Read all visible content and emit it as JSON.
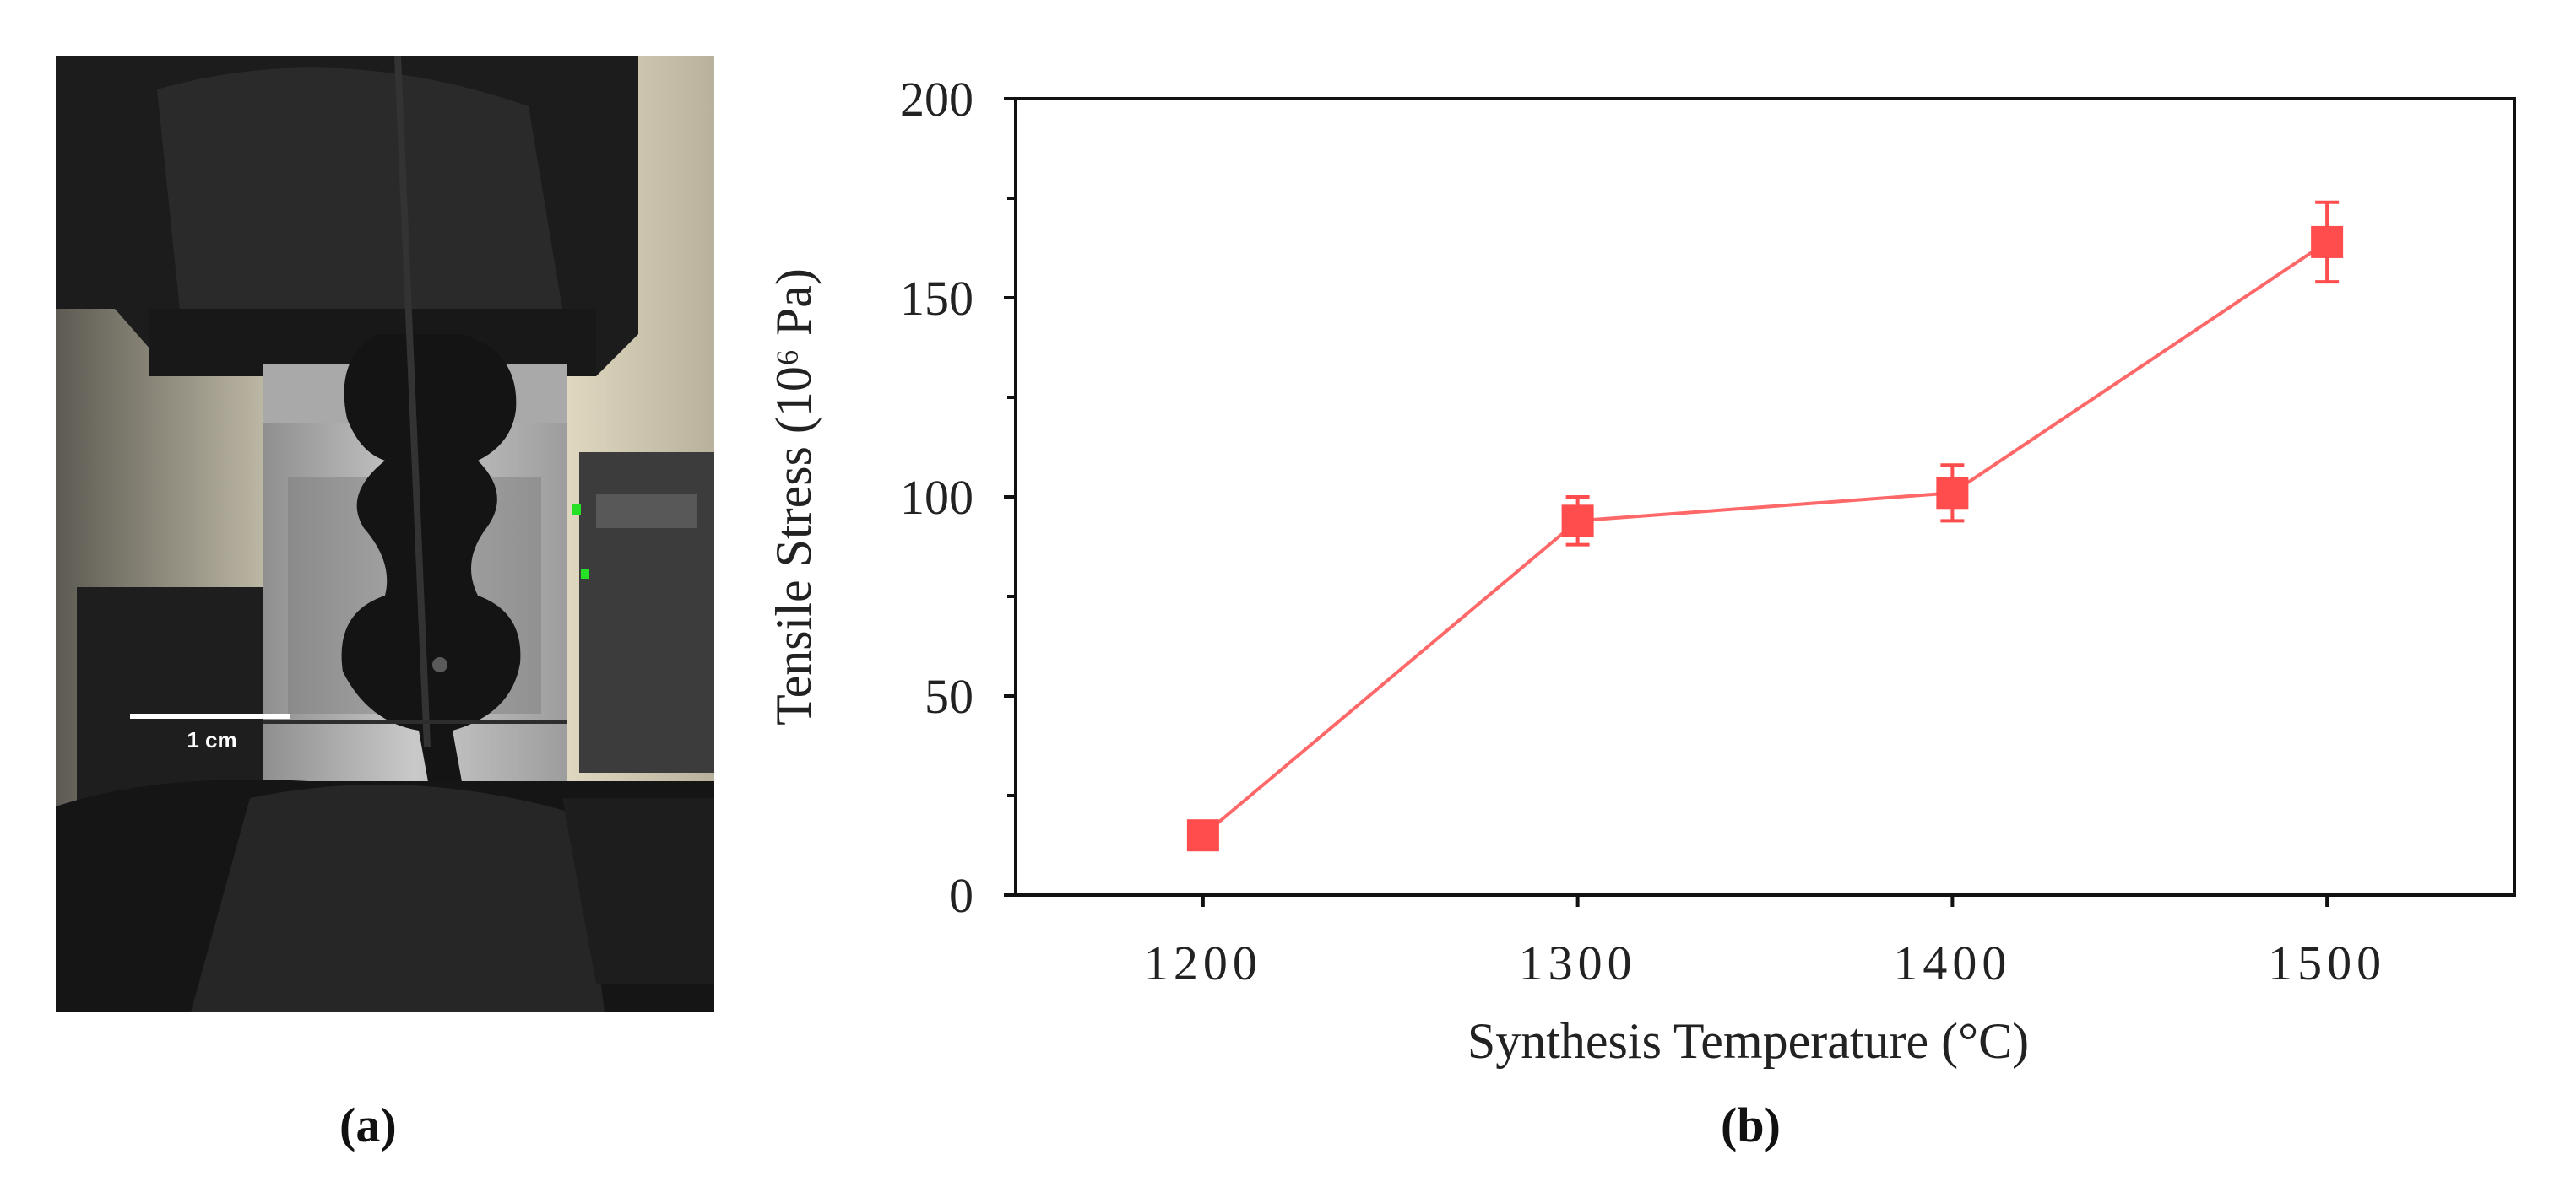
{
  "figure": {
    "panel_a": {
      "label": "(a)",
      "scale_bar_text": "1 cm"
    },
    "panel_b": {
      "label": "(b)"
    }
  },
  "chart_data": {
    "type": "line",
    "xlabel": "Synthesis Temperature (°C)",
    "ylabel": "Tensile Stress (10⁶ Pa)",
    "xlim": [
      1150,
      1550
    ],
    "ylim": [
      0,
      200
    ],
    "x_ticks": [
      1200,
      1300,
      1400,
      1500
    ],
    "y_ticks": [
      0,
      50,
      100,
      150,
      200
    ],
    "grid": false,
    "color": "#ff4d4d",
    "marker": "square",
    "series": [
      {
        "x": [
          1200,
          1300,
          1400,
          1500
        ],
        "y": [
          15,
          94,
          101,
          164
        ],
        "error": [
          0,
          6,
          7,
          10
        ]
      }
    ]
  }
}
